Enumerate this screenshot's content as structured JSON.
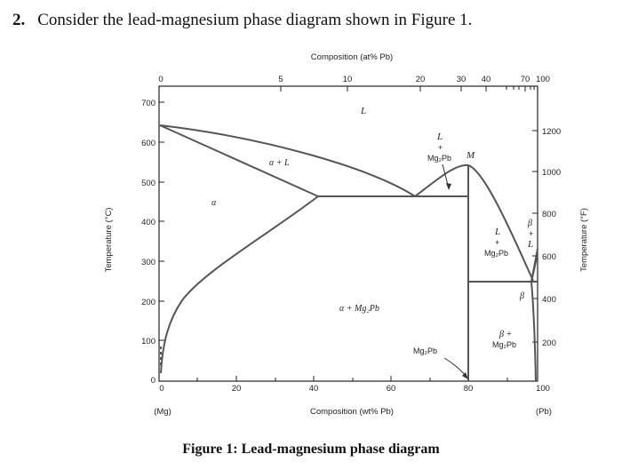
{
  "question": {
    "number": "2.",
    "text": "Consider the lead-magnesium phase diagram shown in Figure 1."
  },
  "figure": {
    "caption": "Figure 1: Lead-magnesium phase diagram",
    "top_axis_title": "Composition (at% Pb)",
    "top_ticks": [
      "0",
      "5",
      "10",
      "20",
      "30",
      "40",
      "70",
      "100"
    ],
    "bottom_axis_title": "Composition (wt% Pb)",
    "bottom_ticks": [
      "0",
      "20",
      "40",
      "60",
      "80",
      "100"
    ],
    "bottom_left_label": "(Mg)",
    "bottom_right_label": "(Pb)",
    "left_axis_title": "Temperature (°C)",
    "left_ticks": [
      "0",
      "100",
      "200",
      "300",
      "400",
      "500",
      "600",
      "700"
    ],
    "right_axis_title": "Temperature (°F)",
    "right_ticks": [
      "200",
      "400",
      "600",
      "800",
      "1000",
      "1200"
    ],
    "regions": {
      "L": "L",
      "alpha": "α",
      "alpha_L": "α + L",
      "L_Mg2Pb_top_L": "L",
      "L_Mg2Pb_top_plus": "+",
      "L_Mg2Pb_top_Mg2Pb": "Mg₂Pb",
      "M": "M",
      "L_Mg2Pb_right_L": "L",
      "L_Mg2Pb_right_plus": "+",
      "L_Mg2Pb_right_Mg2Pb": "Mg₂Pb",
      "beta_L_beta": "β",
      "beta_L_plus": "+",
      "beta_L_L": "L",
      "alpha_Mg2Pb": "α + Mg₂Pb",
      "beta_Mg2Pb_beta": "β +",
      "beta_Mg2Pb_Mg2Pb": "Mg₂Pb",
      "beta": "β",
      "Mg2Pb": "Mg₂Pb"
    }
  }
}
